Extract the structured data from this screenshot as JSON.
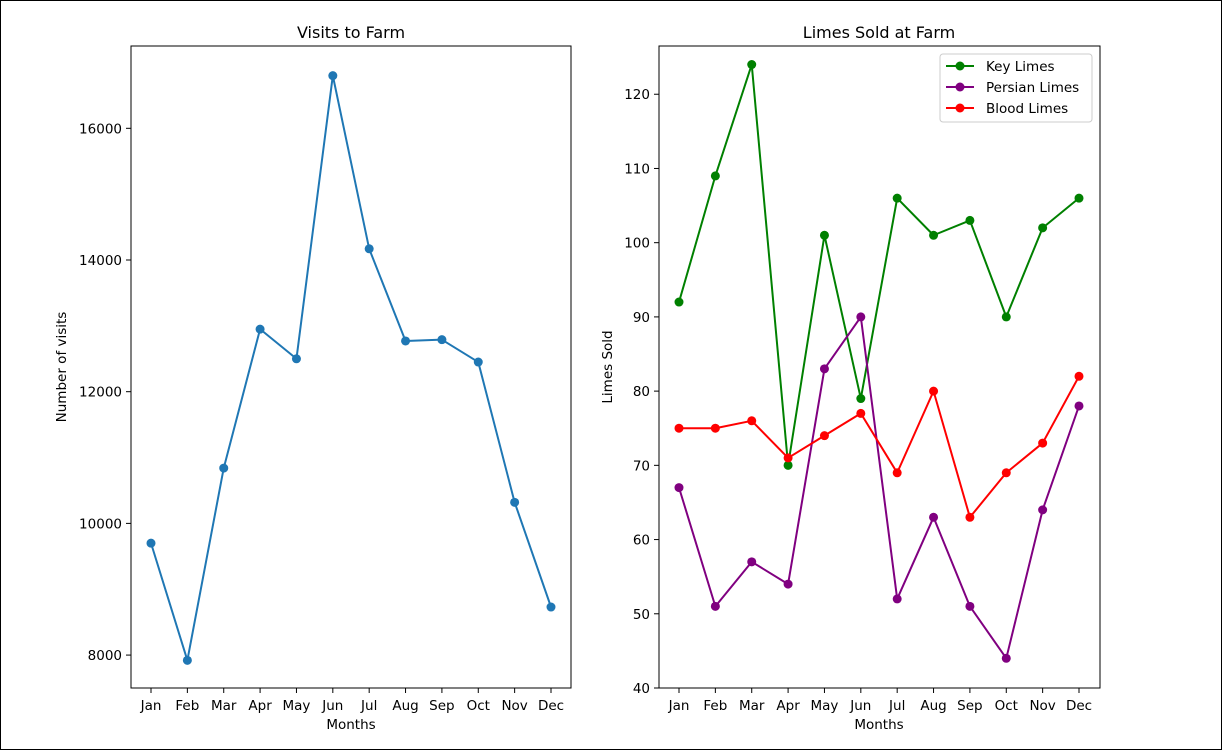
{
  "chart_data": [
    {
      "type": "line",
      "title": "Visits to Farm",
      "xlabel": "Months",
      "ylabel": "Number of visits",
      "categories": [
        "Jan",
        "Feb",
        "Mar",
        "Apr",
        "May",
        "Jun",
        "Jul",
        "Aug",
        "Sep",
        "Oct",
        "Nov",
        "Dec"
      ],
      "ylim": [
        7500,
        17250
      ],
      "yticks": [
        8000,
        10000,
        12000,
        14000,
        16000
      ],
      "grid": false,
      "series": [
        {
          "color": "#1f77b4",
          "values": [
            9700,
            7920,
            10840,
            12950,
            12500,
            16800,
            14170,
            12770,
            12790,
            12450,
            10320,
            8730
          ]
        }
      ]
    },
    {
      "type": "line",
      "title": "Limes Sold at Farm",
      "xlabel": "Months",
      "ylabel": "Limes Sold",
      "categories": [
        "Jan",
        "Feb",
        "Mar",
        "Apr",
        "May",
        "Jun",
        "Jul",
        "Aug",
        "Sep",
        "Oct",
        "Nov",
        "Dec"
      ],
      "ylim": [
        40,
        126.5
      ],
      "yticks": [
        40,
        50,
        60,
        70,
        80,
        90,
        100,
        110,
        120
      ],
      "grid": false,
      "legend": "top-right",
      "series": [
        {
          "name": "Key Limes",
          "color": "#008000",
          "values": [
            92,
            109,
            124,
            70,
            101,
            79,
            106,
            101,
            103,
            90,
            102,
            106
          ]
        },
        {
          "name": "Persian Limes",
          "color": "#800080",
          "values": [
            67,
            51,
            57,
            54,
            83,
            90,
            52,
            63,
            51,
            44,
            64,
            78
          ]
        },
        {
          "name": "Blood Limes",
          "color": "#ff0000",
          "values": [
            75,
            75,
            76,
            71,
            74,
            77,
            69,
            80,
            63,
            69,
            73,
            82
          ]
        }
      ]
    }
  ]
}
